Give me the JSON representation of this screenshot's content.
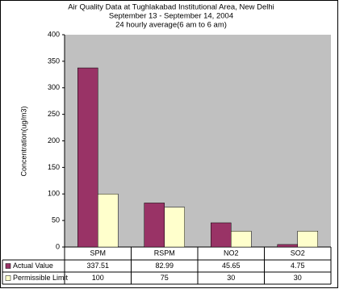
{
  "chart_data": {
    "type": "bar",
    "title": [
      "Air Quality Data at Tughlakabad Institutional Area, New Delhi",
      "September 13  - September 14, 2004",
      "24 hourly average(6 am to 6 am)"
    ],
    "y_label": "Concentration(ug/m3)",
    "categories": [
      "SPM",
      "RSPM",
      "NO2",
      "SO2"
    ],
    "series": [
      {
        "name": "Actual Value",
        "color": "#993366",
        "values": [
          337.51,
          82.99,
          45.65,
          4.75
        ]
      },
      {
        "name": "Permissible Limit",
        "color": "#ffffcc",
        "values": [
          100,
          75,
          30,
          30
        ]
      }
    ],
    "ylim": [
      0,
      400
    ],
    "yticks": [
      0,
      50,
      100,
      150,
      200,
      250,
      300,
      350,
      400
    ],
    "grid": false
  }
}
